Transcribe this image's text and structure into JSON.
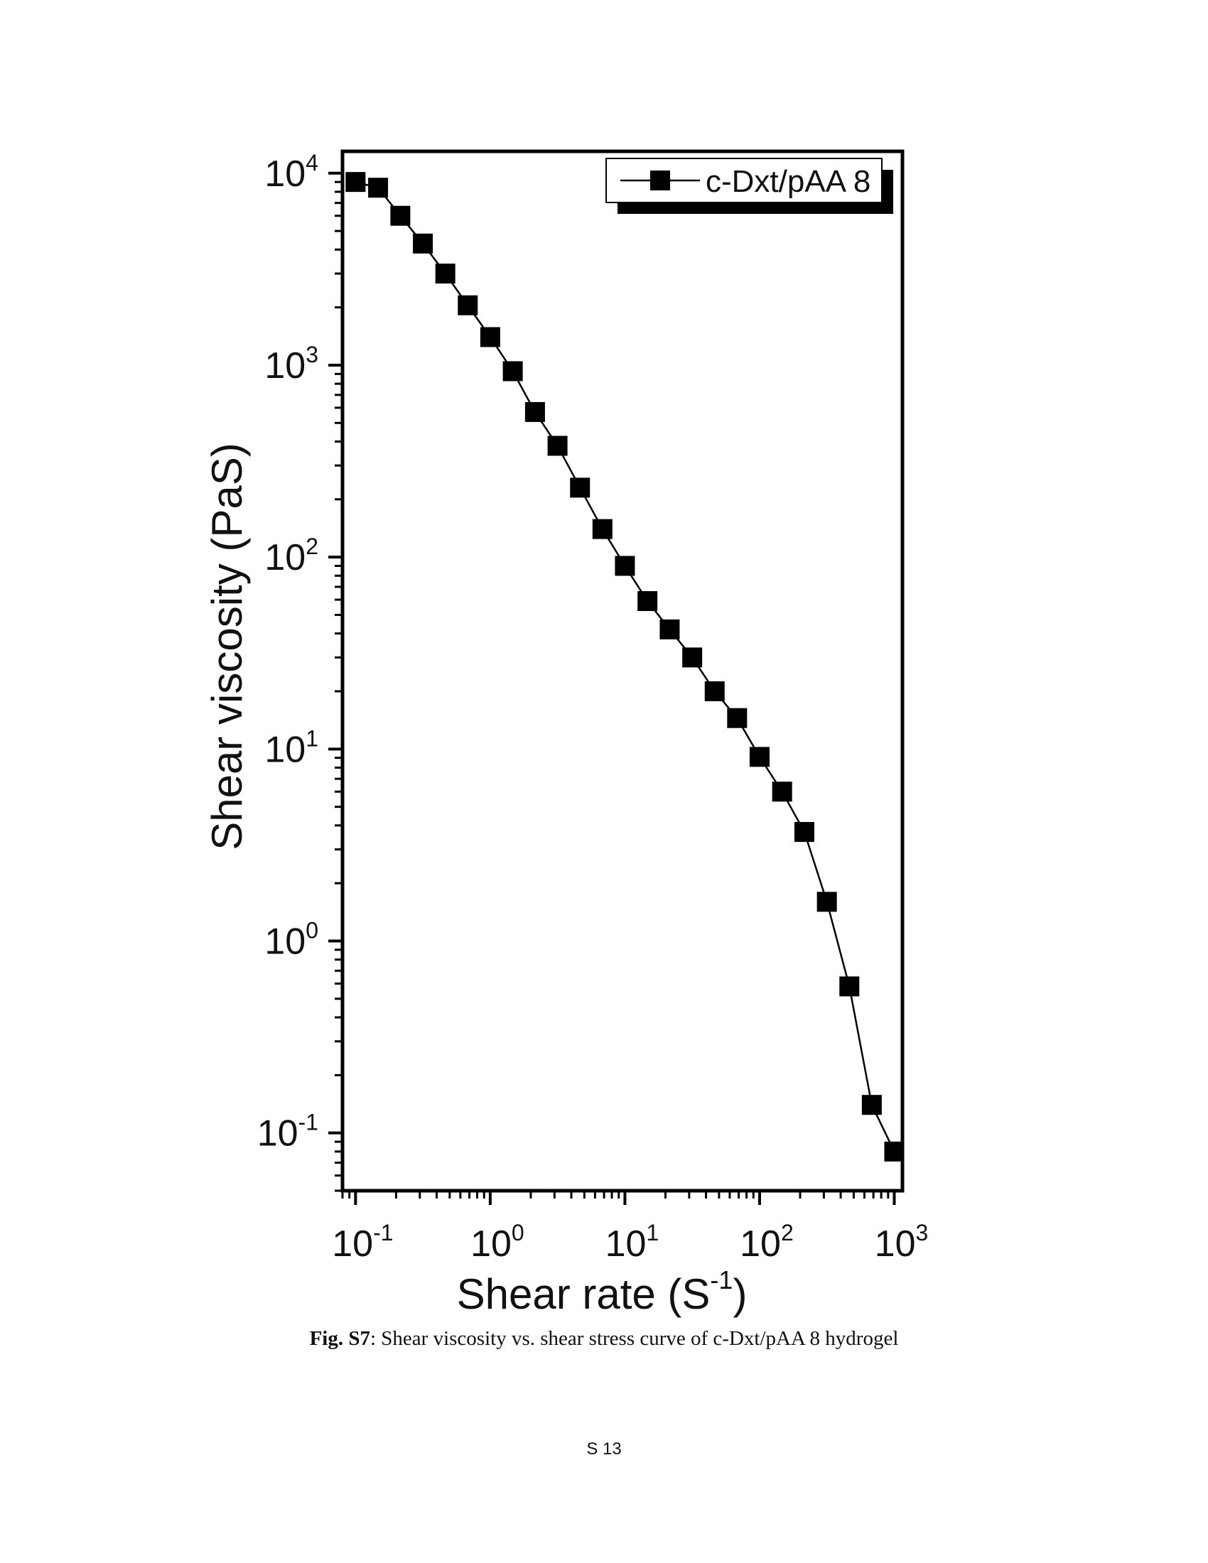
{
  "chart_data": {
    "type": "scatter",
    "xlabel": "Shear rate (S",
    "xlabel_exponent": "-1",
    "xlabel_suffix": ")",
    "ylabel": "Shear viscosity (PaS)",
    "x_scale": "log",
    "y_scale": "log",
    "xlim": [
      0.08,
      1150
    ],
    "ylim": [
      0.05,
      13000
    ],
    "x_ticks": [
      {
        "base": "10",
        "exp": "-1",
        "value": 0.1
      },
      {
        "base": "10",
        "exp": "0",
        "value": 1
      },
      {
        "base": "10",
        "exp": "1",
        "value": 10
      },
      {
        "base": "10",
        "exp": "2",
        "value": 100
      },
      {
        "base": "10",
        "exp": "3",
        "value": 1000
      }
    ],
    "y_ticks": [
      {
        "base": "10",
        "exp": "-1",
        "value": 0.1
      },
      {
        "base": "10",
        "exp": "0",
        "value": 1
      },
      {
        "base": "10",
        "exp": "1",
        "value": 10
      },
      {
        "base": "10",
        "exp": "2",
        "value": 100
      },
      {
        "base": "10",
        "exp": "3",
        "value": 1000
      },
      {
        "base": "10",
        "exp": "4",
        "value": 10000
      }
    ],
    "legend_position": "top-right",
    "grid": false,
    "series": [
      {
        "name": "c-Dxt/pAA 8",
        "color": "#000000",
        "marker": "square",
        "line": "solid",
        "x": [
          0.1,
          0.147,
          0.215,
          0.316,
          0.464,
          0.681,
          1.0,
          1.47,
          2.15,
          3.16,
          4.64,
          6.81,
          10.0,
          14.7,
          21.5,
          31.6,
          46.4,
          68.1,
          100,
          147,
          215,
          316,
          464,
          681,
          1000
        ],
        "y": [
          9000,
          8400,
          6000,
          4300,
          3000,
          2050,
          1400,
          930,
          570,
          380,
          230,
          140,
          90,
          59,
          42,
          30,
          20,
          14.5,
          9.1,
          6.0,
          3.7,
          1.6,
          0.58,
          0.14,
          0.08
        ]
      }
    ]
  },
  "caption": {
    "label": "Fig. S7",
    "text": ": Shear viscosity vs. shear stress curve of c-Dxt/pAA 8 hydrogel"
  },
  "page_number": "S 13"
}
